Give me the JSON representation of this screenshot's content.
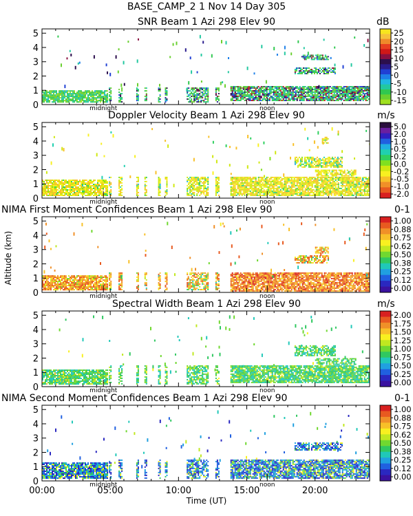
{
  "figure": {
    "station_line": "BASE_CAMP_2    1 Nov 14 Day 305",
    "ylabel": "Altitude (km)",
    "xlabel": "Time (UT)",
    "x_ticks": [
      "00:00",
      "05:00",
      "10:00",
      "15:00",
      "20:00"
    ],
    "y_ticks": [
      "0",
      "1",
      "2",
      "3",
      "4",
      "5"
    ],
    "midnight_label": "midnight",
    "noon_label": "noon"
  },
  "chart_data": [
    {
      "type": "heatmap",
      "title": "SNR Beam 1 Azi 298 Elev 90",
      "unit": "dB",
      "xlim": [
        0,
        24
      ],
      "ylim": [
        0,
        5.3
      ],
      "x_ticks_hours": [
        0,
        5,
        10,
        15,
        20
      ],
      "y_ticks_km": [
        0,
        1,
        2,
        3,
        4,
        5
      ],
      "colorbar": {
        "ticks": [
          "25",
          "20",
          "15",
          "10",
          "5",
          "0",
          "-5",
          "-10",
          "-15"
        ],
        "colors": [
          "#f7e51e",
          "#f5c23a",
          "#ef8a2a",
          "#e84020",
          "#d01818",
          "#8a1040",
          "#2c0f4d",
          "#2a1c8e",
          "#2040d4",
          "#1e80e8",
          "#20b8e0",
          "#22c8a0",
          "#30c850",
          "#6ad030",
          "#a0e020"
        ]
      },
      "profile": {
        "low_top_km": 1.2,
        "dominant_bins": [
          11,
          12,
          13
        ]
      },
      "regions": [
        {
          "time": [
            13.8,
            24.0
          ],
          "alt": [
            0.3,
            1.3
          ],
          "level": 0.45
        },
        {
          "time": [
            0.0,
            4.8
          ],
          "alt": [
            0.2,
            1.0
          ],
          "level": 0.9
        }
      ],
      "features": [
        {
          "time": [
            18.5,
            21.5
          ],
          "alt": [
            2.2,
            2.6
          ]
        },
        {
          "time": [
            19.0,
            21.0
          ],
          "alt": [
            3.2,
            3.5
          ]
        }
      ]
    },
    {
      "type": "heatmap",
      "title": "Doppler Velocity Beam 1 Azi 298 Elev 90",
      "unit": "m/s",
      "xlim": [
        0,
        24
      ],
      "ylim": [
        0,
        5.3
      ],
      "x_ticks_hours": [
        0,
        5,
        10,
        15,
        20
      ],
      "y_ticks_km": [
        0,
        1,
        2,
        3,
        4,
        5
      ],
      "colorbar": {
        "ticks": [
          "5.0",
          "2.0",
          "1.0",
          "0.5",
          "0.2",
          "0.0",
          "-0.2",
          "-0.5",
          "-1.0",
          "-2.0"
        ],
        "colors": [
          "#2a0f3d",
          "#6a1fa0",
          "#3020c0",
          "#2060e0",
          "#20b0e0",
          "#20d0b0",
          "#30d060",
          "#80e020",
          "#d0e810",
          "#f8f020",
          "#f8c028",
          "#f09028",
          "#e85a20",
          "#d82020"
        ]
      },
      "profile": {
        "low_top_km": 1.5,
        "dominant_bins": [
          8,
          9,
          10
        ]
      },
      "regions": [
        {
          "time": [
            13.8,
            24.0
          ],
          "alt": [
            0.2,
            1.5
          ],
          "level": 0.6
        },
        {
          "time": [
            0.0,
            4.8
          ],
          "alt": [
            0.2,
            1.3
          ],
          "level": 0.6
        }
      ],
      "features": [
        {
          "time": [
            18.5,
            22.0
          ],
          "alt": [
            2.2,
            2.9
          ]
        },
        {
          "time": [
            20.0,
            23.0
          ],
          "alt": [
            1.6,
            2.0
          ]
        },
        {
          "time": [
            20.5,
            21.0
          ],
          "alt": [
            3.9,
            4.3
          ]
        }
      ]
    },
    {
      "type": "heatmap",
      "title": "NIMA First Moment Confidences Beam 1 Azi 298 Elev 90",
      "unit": "0-1",
      "xlim": [
        0,
        24
      ],
      "ylim": [
        0,
        5.3
      ],
      "x_ticks_hours": [
        0,
        5,
        10,
        15,
        20
      ],
      "y_ticks_km": [
        0,
        1,
        2,
        3,
        4,
        5
      ],
      "colorbar": {
        "ticks": [
          "1.00",
          "0.88",
          "0.75",
          "0.62",
          "0.50",
          "0.38",
          "0.25",
          "0.12",
          "0.00"
        ],
        "colors": [
          "#d82020",
          "#e85a20",
          "#f09028",
          "#f8c028",
          "#f8f020",
          "#c0e820",
          "#70d830",
          "#30c860",
          "#20c8b8",
          "#20a0e0",
          "#2060e0",
          "#2a28c0",
          "#3a12a0"
        ]
      },
      "profile": {
        "low_top_km": 1.4,
        "dominant_bins": [
          1,
          2,
          3
        ]
      },
      "regions": [
        {
          "time": [
            13.8,
            24.0
          ],
          "alt": [
            0.1,
            1.4
          ],
          "level": 0.1
        },
        {
          "time": [
            0.0,
            4.8
          ],
          "alt": [
            0.2,
            1.2
          ],
          "level": 0.3
        }
      ],
      "features": [
        {
          "time": [
            18.5,
            21.0
          ],
          "alt": [
            2.1,
            2.6
          ]
        },
        {
          "time": [
            20.0,
            21.0
          ],
          "alt": [
            2.8,
            3.2
          ]
        }
      ]
    },
    {
      "type": "heatmap",
      "title": "Spectral Width Beam 1 Azi 298 Elev 90",
      "unit": "m/s",
      "xlim": [
        0,
        24
      ],
      "ylim": [
        0,
        5.3
      ],
      "x_ticks_hours": [
        0,
        5,
        10,
        15,
        20
      ],
      "y_ticks_km": [
        0,
        1,
        2,
        3,
        4,
        5
      ],
      "colorbar": {
        "ticks": [
          "2.00",
          "1.75",
          "1.50",
          "1.25",
          "1.00",
          "0.75",
          "0.50",
          "0.25",
          "0.00"
        ],
        "colors": [
          "#d82020",
          "#e85a20",
          "#f09028",
          "#f8c028",
          "#f8f020",
          "#c0e820",
          "#70d830",
          "#30c860",
          "#20c8b8",
          "#20a0e0",
          "#2060e0",
          "#2a28c0",
          "#3a12a0"
        ]
      },
      "profile": {
        "low_top_km": 1.5,
        "dominant_bins": [
          6,
          7,
          8
        ]
      },
      "regions": [
        {
          "time": [
            13.8,
            24.0
          ],
          "alt": [
            0.3,
            1.5
          ],
          "level": 0.5
        },
        {
          "time": [
            0.0,
            4.8
          ],
          "alt": [
            0.2,
            1.2
          ],
          "level": 0.45
        }
      ],
      "features": [
        {
          "time": [
            18.5,
            21.5
          ],
          "alt": [
            2.2,
            2.9
          ]
        },
        {
          "time": [
            20.0,
            23.0
          ],
          "alt": [
            1.6,
            2.0
          ]
        }
      ]
    },
    {
      "type": "heatmap",
      "title": "NIMA Second Moment Confidences Beam 1 Azi 298 Elev 90",
      "unit": "0-1",
      "xlim": [
        0,
        24
      ],
      "ylim": [
        0,
        5.3
      ],
      "x_ticks_hours": [
        0,
        5,
        10,
        15,
        20
      ],
      "y_ticks_km": [
        0,
        1,
        2,
        3,
        4,
        5
      ],
      "colorbar": {
        "ticks": [
          "1.00",
          "0.88",
          "0.75",
          "0.62",
          "0.50",
          "0.38",
          "0.25",
          "0.12",
          "0.00"
        ],
        "colors": [
          "#d82020",
          "#e85a20",
          "#f09028",
          "#f8c028",
          "#f8f020",
          "#c0e820",
          "#70d830",
          "#30c860",
          "#20c8b8",
          "#20a0e0",
          "#2060e0",
          "#2a28c0",
          "#3a12a0"
        ]
      },
      "profile": {
        "low_top_km": 1.5,
        "dominant_bins": [
          9,
          10,
          11
        ]
      },
      "regions": [
        {
          "time": [
            13.8,
            24.0
          ],
          "alt": [
            0.2,
            1.5
          ],
          "level": 0.5
        },
        {
          "time": [
            0.0,
            4.8
          ],
          "alt": [
            0.2,
            1.3
          ],
          "level": 0.5
        }
      ],
      "features": [
        {
          "time": [
            18.5,
            22.0
          ],
          "alt": [
            2.2,
            2.7
          ]
        }
      ]
    }
  ]
}
